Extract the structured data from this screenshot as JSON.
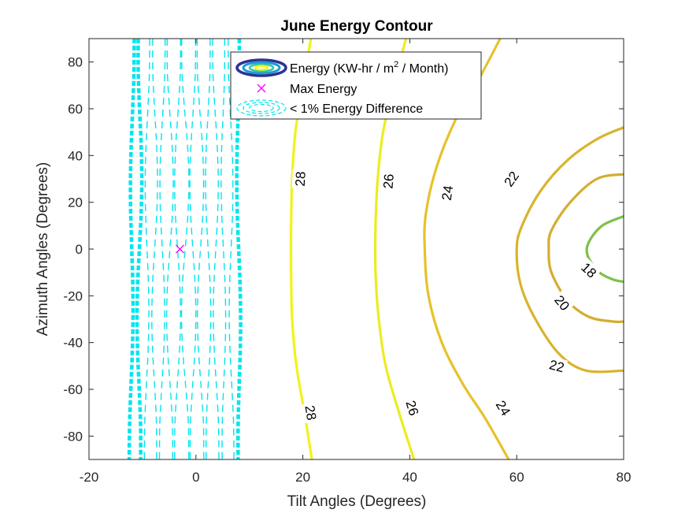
{
  "chart_data": {
    "type": "contour",
    "title": "June Energy Contour",
    "xlabel": "Tilt Angles (Degrees)",
    "ylabel": "Azimuth Angles (Degrees)",
    "xlim": [
      -20,
      80
    ],
    "ylim": [
      -90,
      90
    ],
    "xticks": [
      -20,
      0,
      20,
      40,
      60,
      80
    ],
    "yticks": [
      -80,
      -60,
      -40,
      -20,
      0,
      20,
      40,
      60,
      80
    ],
    "xtick_labels": [
      "-20",
      "0",
      "20",
      "40",
      "60",
      "80"
    ],
    "ytick_labels": [
      "-80",
      "-60",
      "-40",
      "-20",
      "0",
      "20",
      "40",
      "60",
      "80"
    ],
    "grid": false,
    "legend_position": "top-center",
    "legend": [
      {
        "key": "energy",
        "label_main": "Energy (KW-hr / m",
        "label_sup": "2",
        "label_tail": " / Month)"
      },
      {
        "key": "max",
        "label": "Max Energy"
      },
      {
        "key": "diff",
        "label": "< 1% Energy Difference"
      }
    ],
    "max_energy_point": {
      "tilt": -3,
      "azimuth": 0,
      "color": "#ff00ff"
    },
    "contour_levels": [
      {
        "level": 28,
        "color": "#f2f21a",
        "points": [
          [
            21.5,
            90
          ],
          [
            20,
            70
          ],
          [
            18.6,
            50
          ],
          [
            18,
            30
          ],
          [
            17.8,
            10
          ],
          [
            17.8,
            -10
          ],
          [
            18,
            -30
          ],
          [
            18.8,
            -50
          ],
          [
            20.3,
            -70
          ],
          [
            21.7,
            -90
          ]
        ],
        "labels": [
          {
            "text": "28",
            "tilt": 19.5,
            "azimuth": 30
          },
          {
            "text": "28",
            "tilt": 21.5,
            "azimuth": -70
          }
        ]
      },
      {
        "level": 26,
        "color": "#ecec20",
        "points": [
          [
            39.3,
            90
          ],
          [
            37,
            70
          ],
          [
            35,
            50
          ],
          [
            34,
            30
          ],
          [
            33.6,
            10
          ],
          [
            33.6,
            -10
          ],
          [
            34.2,
            -30
          ],
          [
            35.5,
            -50
          ],
          [
            38,
            -70
          ],
          [
            40.8,
            -90
          ]
        ],
        "labels": [
          {
            "text": "26",
            "tilt": 36,
            "azimuth": 29
          },
          {
            "text": "26",
            "tilt": 40.5,
            "azimuth": -68
          }
        ]
      },
      {
        "level": 24,
        "color": "#e6c22c",
        "points": [
          [
            56.9,
            90
          ],
          [
            53,
            73
          ],
          [
            48.5,
            55
          ],
          [
            45,
            35
          ],
          [
            43,
            15
          ],
          [
            42.8,
            0
          ],
          [
            43.5,
            -20
          ],
          [
            46,
            -40
          ],
          [
            50,
            -58
          ],
          [
            54,
            -72
          ],
          [
            58.5,
            -90
          ]
        ],
        "labels": [
          {
            "text": "24",
            "tilt": 47,
            "azimuth": 24
          },
          {
            "text": "24",
            "tilt": 57.5,
            "azimuth": -68
          }
        ]
      },
      {
        "level": 22,
        "color": "#d9b32c",
        "points": [
          [
            80,
            52
          ],
          [
            75,
            47
          ],
          [
            69.5,
            38
          ],
          [
            64.5,
            25
          ],
          [
            61,
            10
          ],
          [
            60,
            0
          ],
          [
            60.7,
            -15
          ],
          [
            63.5,
            -30
          ],
          [
            68,
            -45
          ],
          [
            73,
            -52
          ],
          [
            80,
            -52
          ]
        ],
        "labels": [
          {
            "text": "22",
            "tilt": 59,
            "azimuth": 30
          },
          {
            "text": "22",
            "tilt": 67.5,
            "azimuth": -50
          }
        ]
      },
      {
        "level": 20,
        "color": "#d4ad31",
        "points": [
          [
            80,
            32
          ],
          [
            75,
            30
          ],
          [
            70,
            20
          ],
          [
            66.5,
            8
          ],
          [
            66,
            0
          ],
          [
            66.5,
            -10
          ],
          [
            69.5,
            -22
          ],
          [
            73.5,
            -29
          ],
          [
            78,
            -31
          ],
          [
            80,
            -31
          ]
        ],
        "labels": [
          {
            "text": "20",
            "tilt": 68.5,
            "azimuth": -23
          }
        ]
      },
      {
        "level": 18,
        "color": "#7ec04a",
        "points": [
          [
            80,
            14
          ],
          [
            76,
            10
          ],
          [
            73.5,
            3
          ],
          [
            73.3,
            -3
          ],
          [
            75.5,
            -10
          ],
          [
            78,
            -13
          ],
          [
            80,
            -14
          ]
        ],
        "labels": [
          {
            "text": "18",
            "tilt": 73.5,
            "azimuth": -9
          }
        ]
      }
    ],
    "difference_region": {
      "color": "#00e5ee",
      "tilt_range": [
        -12,
        8
      ],
      "note": "< 1% Energy Difference"
    }
  }
}
